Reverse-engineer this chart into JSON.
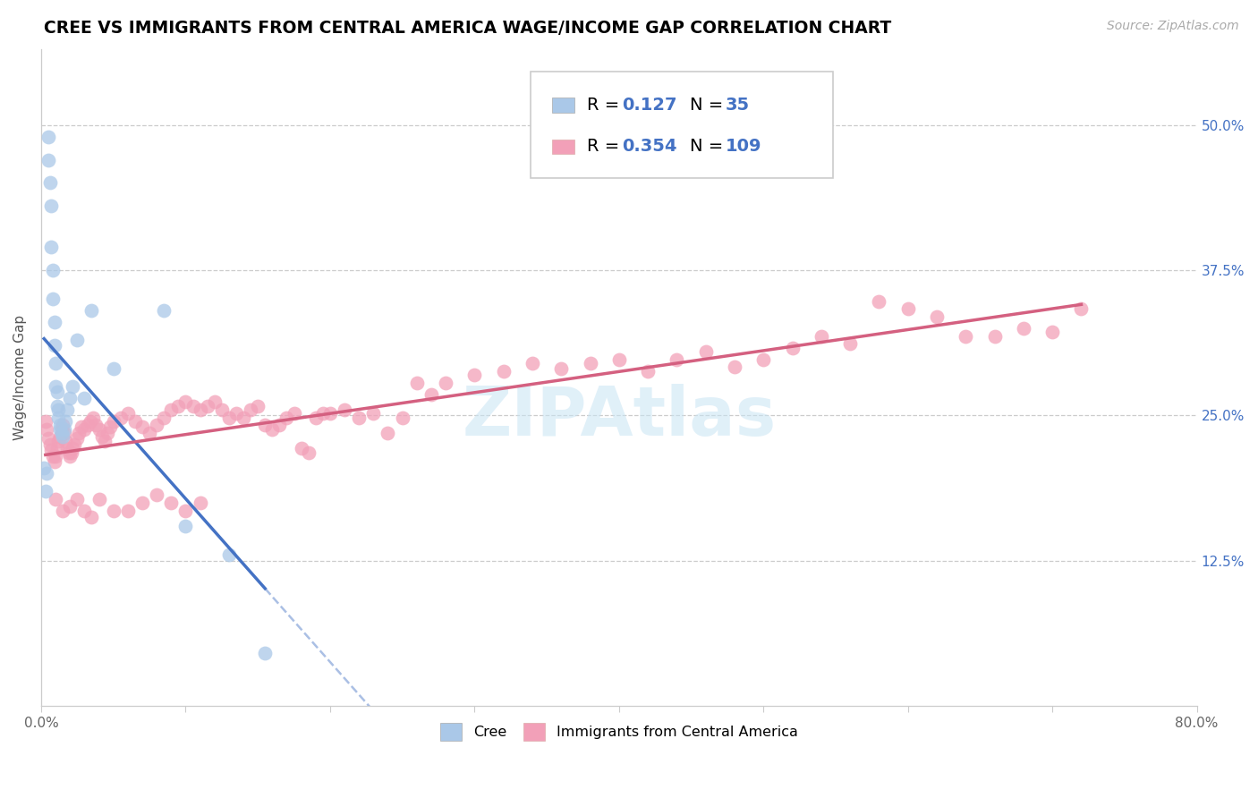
{
  "title": "CREE VS IMMIGRANTS FROM CENTRAL AMERICA WAGE/INCOME GAP CORRELATION CHART",
  "source": "Source: ZipAtlas.com",
  "ylabel": "Wage/Income Gap",
  "y_ticks": [
    0.125,
    0.25,
    0.375,
    0.5
  ],
  "y_tick_labels": [
    "12.5%",
    "25.0%",
    "37.5%",
    "50.0%"
  ],
  "x_min": 0.0,
  "x_max": 0.8,
  "y_min": 0.0,
  "y_max": 0.565,
  "legend_label1": "Cree",
  "legend_label2": "Immigrants from Central America",
  "cree_color": "#aac8e8",
  "immigrant_color": "#f2a0b8",
  "trendline_cree_color": "#4472c4",
  "trendline_immigrant_color": "#d46080",
  "watermark": "ZIPAtlas",
  "cree_x": [
    0.002,
    0.003,
    0.004,
    0.005,
    0.005,
    0.006,
    0.007,
    0.007,
    0.008,
    0.008,
    0.009,
    0.009,
    0.01,
    0.01,
    0.011,
    0.011,
    0.012,
    0.012,
    0.013,
    0.013,
    0.014,
    0.015,
    0.016,
    0.017,
    0.018,
    0.02,
    0.022,
    0.025,
    0.03,
    0.035,
    0.05,
    0.085,
    0.1,
    0.13,
    0.155
  ],
  "cree_y": [
    0.205,
    0.185,
    0.2,
    0.49,
    0.47,
    0.45,
    0.43,
    0.395,
    0.375,
    0.35,
    0.33,
    0.31,
    0.295,
    0.275,
    0.27,
    0.258,
    0.255,
    0.248,
    0.242,
    0.238,
    0.235,
    0.232,
    0.238,
    0.245,
    0.255,
    0.265,
    0.275,
    0.315,
    0.265,
    0.34,
    0.29,
    0.34,
    0.155,
    0.13,
    0.045
  ],
  "immigrant_x": [
    0.003,
    0.004,
    0.005,
    0.006,
    0.007,
    0.008,
    0.009,
    0.01,
    0.011,
    0.012,
    0.013,
    0.014,
    0.015,
    0.016,
    0.017,
    0.018,
    0.019,
    0.02,
    0.021,
    0.022,
    0.023,
    0.025,
    0.026,
    0.028,
    0.03,
    0.032,
    0.034,
    0.036,
    0.038,
    0.04,
    0.042,
    0.044,
    0.046,
    0.048,
    0.05,
    0.055,
    0.06,
    0.065,
    0.07,
    0.075,
    0.08,
    0.085,
    0.09,
    0.095,
    0.1,
    0.105,
    0.11,
    0.115,
    0.12,
    0.125,
    0.13,
    0.135,
    0.14,
    0.145,
    0.15,
    0.155,
    0.16,
    0.165,
    0.17,
    0.175,
    0.18,
    0.185,
    0.19,
    0.195,
    0.2,
    0.21,
    0.22,
    0.23,
    0.24,
    0.25,
    0.26,
    0.27,
    0.28,
    0.3,
    0.32,
    0.34,
    0.36,
    0.38,
    0.4,
    0.42,
    0.44,
    0.46,
    0.48,
    0.5,
    0.52,
    0.54,
    0.56,
    0.58,
    0.6,
    0.62,
    0.64,
    0.66,
    0.68,
    0.7,
    0.72,
    0.01,
    0.015,
    0.02,
    0.025,
    0.03,
    0.035,
    0.04,
    0.05,
    0.06,
    0.07,
    0.08,
    0.09,
    0.1,
    0.11
  ],
  "immigrant_y": [
    0.245,
    0.238,
    0.23,
    0.225,
    0.22,
    0.215,
    0.21,
    0.215,
    0.222,
    0.228,
    0.232,
    0.238,
    0.242,
    0.235,
    0.228,
    0.222,
    0.218,
    0.215,
    0.218,
    0.222,
    0.225,
    0.23,
    0.235,
    0.24,
    0.238,
    0.242,
    0.245,
    0.248,
    0.242,
    0.238,
    0.232,
    0.228,
    0.235,
    0.24,
    0.245,
    0.248,
    0.252,
    0.245,
    0.24,
    0.235,
    0.242,
    0.248,
    0.255,
    0.258,
    0.262,
    0.258,
    0.255,
    0.258,
    0.262,
    0.255,
    0.248,
    0.252,
    0.248,
    0.255,
    0.258,
    0.242,
    0.238,
    0.242,
    0.248,
    0.252,
    0.222,
    0.218,
    0.248,
    0.252,
    0.252,
    0.255,
    0.248,
    0.252,
    0.235,
    0.248,
    0.278,
    0.268,
    0.278,
    0.285,
    0.288,
    0.295,
    0.29,
    0.295,
    0.298,
    0.288,
    0.298,
    0.305,
    0.292,
    0.298,
    0.308,
    0.318,
    0.312,
    0.348,
    0.342,
    0.335,
    0.318,
    0.318,
    0.325,
    0.322,
    0.342,
    0.178,
    0.168,
    0.172,
    0.178,
    0.168,
    0.162,
    0.178,
    0.168,
    0.168,
    0.175,
    0.182,
    0.175,
    0.168,
    0.175
  ],
  "cree_trendline_x_start": 0.002,
  "cree_trendline_x_solid_end": 0.155,
  "cree_trendline_x_dashed_end": 0.8,
  "imm_trendline_x_start": 0.003,
  "imm_trendline_x_end": 0.72
}
